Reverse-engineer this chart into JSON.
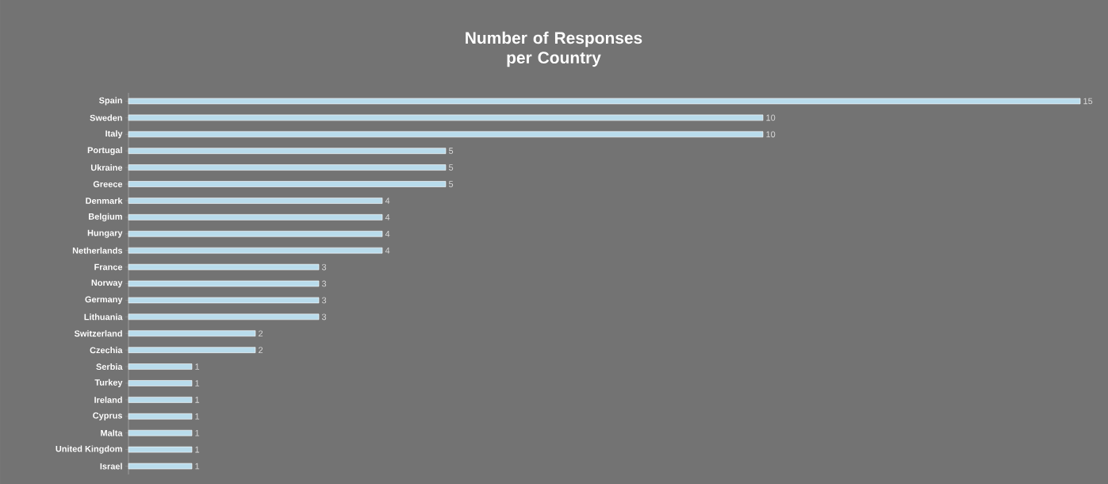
{
  "chart_data": {
    "type": "bar",
    "orientation": "horizontal",
    "title": "Number of Responses per Country",
    "categories": [
      "Spain",
      "Sweden",
      "Italy",
      "Portugal",
      "Ukraine",
      "Greece",
      "Denmark",
      "Belgium",
      "Hungary",
      "Netherlands",
      "France",
      "Norway",
      "Germany",
      "Lithuania",
      "Switzerland",
      "Czechia",
      "Serbia",
      "Turkey",
      "Ireland",
      "Cyprus",
      "Malta",
      "United Kingdom",
      "Israel"
    ],
    "values": [
      15,
      10,
      10,
      5,
      5,
      5,
      4,
      4,
      4,
      4,
      3,
      3,
      3,
      3,
      2,
      2,
      1,
      1,
      1,
      1,
      1,
      1,
      1
    ],
    "color": "#b9dcec",
    "data_labels": true
  }
}
